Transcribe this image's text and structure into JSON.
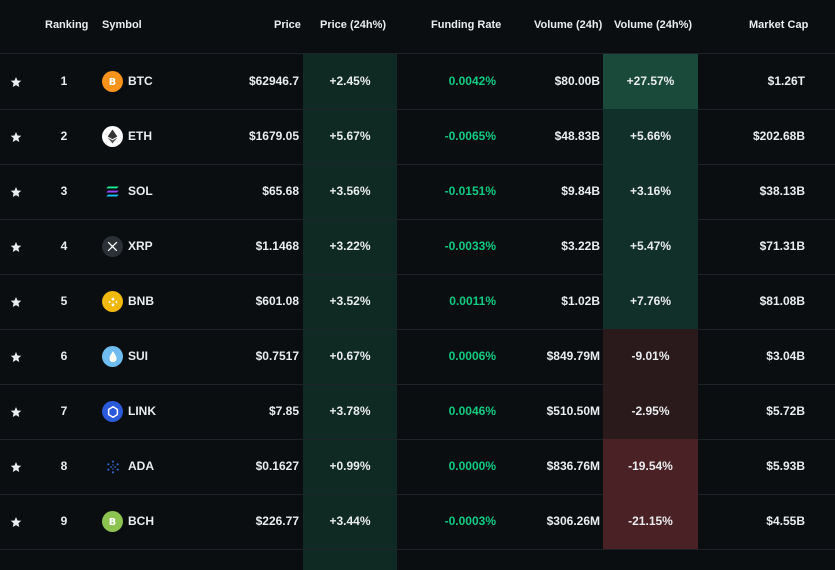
{
  "header": {
    "ranking": "Ranking",
    "symbol": "Symbol",
    "price": "Price",
    "price_change": "Price (24h%)",
    "funding_rate": "Funding Rate",
    "volume": "Volume (24h)",
    "volume_change": "Volume (24h%)",
    "market_cap": "Market Cap"
  },
  "colors": {
    "positive": "#0ecb81",
    "volume_up_strong": "#1a4a3a",
    "volume_up": "#12302a",
    "volume_down_strong": "#4a2226",
    "volume_down": "#2a1a1c",
    "price_col_bg": "#0f2a22"
  },
  "rows": [
    {
      "rank": "1",
      "symbol": "BTC",
      "icon": "bitcoin-icon",
      "icon_color": "#f7931a",
      "glyph": "₿",
      "price": "$62946.7",
      "price_change": "+2.45%",
      "funding": "0.0042%",
      "volume": "$80.00B",
      "volume_change": "+27.57%",
      "volume_bg": "#1a4a3a",
      "market_cap": "$1.26T"
    },
    {
      "rank": "2",
      "symbol": "ETH",
      "icon": "ethereum-icon",
      "icon_color": "#ffffff",
      "glyph": "◆",
      "price": "$1679.05",
      "price_change": "+5.67%",
      "funding": "-0.0065%",
      "volume": "$48.83B",
      "volume_change": "+5.66%",
      "volume_bg": "#12302a",
      "market_cap": "$202.68B"
    },
    {
      "rank": "3",
      "symbol": "SOL",
      "icon": "solana-icon",
      "icon_color": "#0b0e11",
      "glyph": "≡",
      "price": "$65.68",
      "price_change": "+3.56%",
      "funding": "-0.0151%",
      "volume": "$9.84B",
      "volume_change": "+3.16%",
      "volume_bg": "#12302a",
      "market_cap": "$38.13B"
    },
    {
      "rank": "4",
      "symbol": "XRP",
      "icon": "xrp-icon",
      "icon_color": "#2b2f36",
      "glyph": "✕",
      "price": "$1.1468",
      "price_change": "+3.22%",
      "funding": "-0.0033%",
      "volume": "$3.22B",
      "volume_change": "+5.47%",
      "volume_bg": "#12302a",
      "market_cap": "$71.31B"
    },
    {
      "rank": "5",
      "symbol": "BNB",
      "icon": "bnb-icon",
      "icon_color": "#f0b90b",
      "glyph": "◈",
      "price": "$601.08",
      "price_change": "+3.52%",
      "funding": "0.0011%",
      "volume": "$1.02B",
      "volume_change": "+7.76%",
      "volume_bg": "#12302a",
      "market_cap": "$81.08B"
    },
    {
      "rank": "6",
      "symbol": "SUI",
      "icon": "sui-icon",
      "icon_color": "#6fbcf0",
      "glyph": "💧",
      "price": "$0.7517",
      "price_change": "+0.67%",
      "funding": "0.0006%",
      "volume": "$849.79M",
      "volume_change": "-9.01%",
      "volume_bg": "#2a1a1c",
      "market_cap": "$3.04B"
    },
    {
      "rank": "7",
      "symbol": "LINK",
      "icon": "chainlink-icon",
      "icon_color": "#2a5ada",
      "glyph": "⬡",
      "price": "$7.85",
      "price_change": "+3.78%",
      "funding": "0.0046%",
      "volume": "$510.50M",
      "volume_change": "-2.95%",
      "volume_bg": "#2a1a1c",
      "market_cap": "$5.72B"
    },
    {
      "rank": "8",
      "symbol": "ADA",
      "icon": "cardano-icon",
      "icon_color": "#0b0e11",
      "glyph": "✺",
      "price": "$0.1627",
      "price_change": "+0.99%",
      "funding": "0.0000%",
      "volume": "$836.76M",
      "volume_change": "-19.54%",
      "volume_bg": "#4a2226",
      "market_cap": "$5.93B"
    },
    {
      "rank": "9",
      "symbol": "BCH",
      "icon": "bitcoin-cash-icon",
      "icon_color": "#8dc351",
      "glyph": "₿",
      "price": "$226.77",
      "price_change": "+3.44%",
      "funding": "-0.0003%",
      "volume": "$306.26M",
      "volume_change": "-21.15%",
      "volume_bg": "#4a2226",
      "market_cap": "$4.55B"
    }
  ]
}
